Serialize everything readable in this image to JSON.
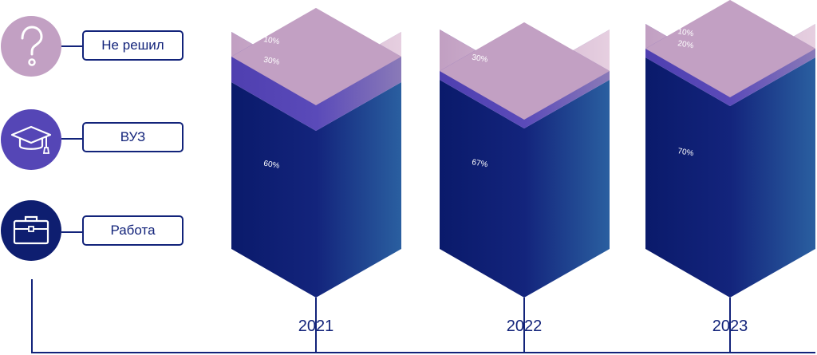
{
  "legend": [
    {
      "label": "Не решил",
      "icon": "question-icon",
      "color": "#c2a0c3"
    },
    {
      "label": "ВУЗ",
      "icon": "graduation-cap-icon",
      "color": "#5546b6"
    },
    {
      "label": "Работа",
      "icon": "briefcase-icon",
      "color": "#0e1e70"
    }
  ],
  "colors": {
    "axis": "#12237a",
    "ne_reshil": "#c2a0c3",
    "vuz": "#5748b8",
    "rabota": "#13237b"
  },
  "chart_data": {
    "type": "bar",
    "stacked": true,
    "categories": [
      "2021",
      "2022",
      "2023"
    ],
    "series": [
      {
        "name": "Работа",
        "values": [
          60,
          67,
          70
        ],
        "labels": [
          "60%",
          "67%",
          "70%"
        ]
      },
      {
        "name": "ВУЗ",
        "values": [
          30,
          30,
          20
        ],
        "labels": [
          "30%",
          "30%",
          "20%"
        ]
      },
      {
        "name": "Не решил",
        "values": [
          10,
          3,
          10
        ],
        "labels": [
          "10%",
          "3%",
          "10%"
        ]
      }
    ]
  }
}
